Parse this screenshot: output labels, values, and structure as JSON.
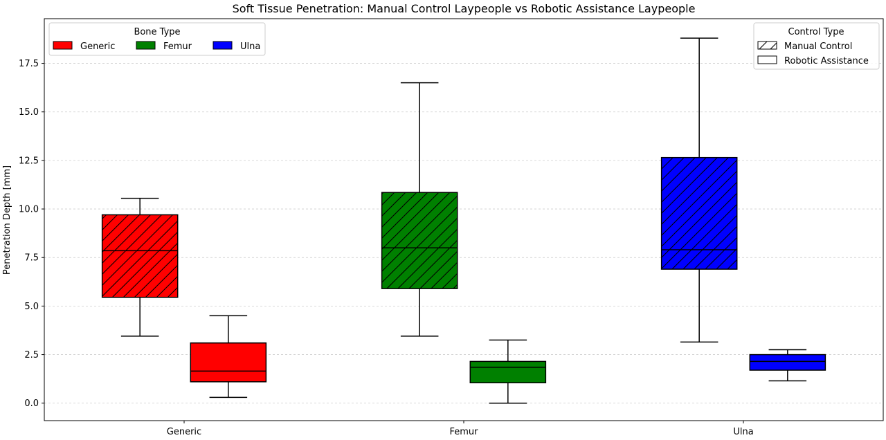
{
  "chart_data": {
    "type": "box",
    "title": "Soft Tissue Penetration: Manual Control Laypeople vs Robotic Assistance Laypeople",
    "xlabel": "",
    "ylabel": "Penetration Depth [mm]",
    "ylim": [
      -0.9,
      19.8
    ],
    "yticks": [
      "0.0",
      "2.5",
      "5.0",
      "7.5",
      "10.0",
      "12.5",
      "15.0",
      "17.5"
    ],
    "grid": "horizontal dashed",
    "categories": [
      "Generic",
      "Femur",
      "Ulna"
    ],
    "colors": {
      "Generic": "#ff0000",
      "Femur": "#008000",
      "Ulna": "#0000ff"
    },
    "series": [
      {
        "name": "Manual Control",
        "hatch": true,
        "boxes": [
          {
            "category": "Generic",
            "whislo": 3.45,
            "q1": 5.45,
            "median": 7.85,
            "q3": 9.7,
            "whishi": 10.55
          },
          {
            "category": "Femur",
            "whislo": 3.45,
            "q1": 5.9,
            "median": 8.0,
            "q3": 10.85,
            "whishi": 16.5
          },
          {
            "category": "Ulna",
            "whislo": 3.15,
            "q1": 6.9,
            "median": 7.9,
            "q3": 12.65,
            "whishi": 18.8
          }
        ]
      },
      {
        "name": "Robotic Assistance",
        "hatch": false,
        "boxes": [
          {
            "category": "Generic",
            "whislo": 0.3,
            "q1": 1.1,
            "median": 1.65,
            "q3": 3.1,
            "whishi": 4.5
          },
          {
            "category": "Femur",
            "whislo": 0.0,
            "q1": 1.05,
            "median": 1.85,
            "q3": 2.15,
            "whishi": 3.25
          },
          {
            "category": "Ulna",
            "whislo": 1.15,
            "q1": 1.7,
            "median": 2.15,
            "q3": 2.5,
            "whishi": 2.75
          }
        ]
      }
    ],
    "legends": [
      {
        "title": "Bone Type",
        "placement": "top-left",
        "items": [
          {
            "label": "Generic",
            "color": "#ff0000"
          },
          {
            "label": "Femur",
            "color": "#008000"
          },
          {
            "label": "Ulna",
            "color": "#0000ff"
          }
        ]
      },
      {
        "title": "Control Type",
        "placement": "top-right",
        "items": [
          {
            "label": "Manual Control",
            "hatch": true
          },
          {
            "label": "Robotic Assistance",
            "hatch": false
          }
        ]
      }
    ]
  }
}
